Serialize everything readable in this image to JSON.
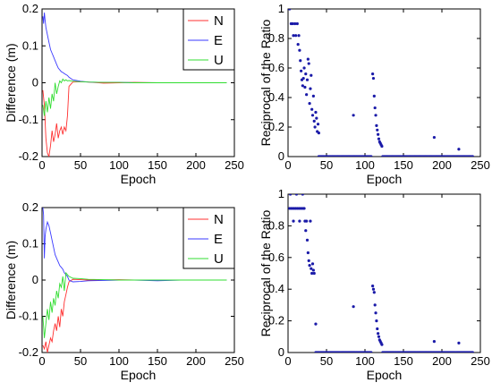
{
  "chart_data": [
    {
      "type": "line",
      "xlabel": "Epoch",
      "ylabel": "Difference (m)",
      "xlim": [
        0,
        250
      ],
      "ylim": [
        -0.2,
        0.2
      ],
      "xticks": [
        0,
        50,
        100,
        150,
        200,
        250
      ],
      "yticks": [
        -0.2,
        -0.1,
        0,
        0.1,
        0.2
      ],
      "ytick_labels": [
        "-0.2",
        "-0.1",
        "0",
        "0.1",
        "0.2"
      ],
      "legend": "top-right",
      "series": [
        {
          "name": "N",
          "color": "#ff3030",
          "x": [
            1,
            3,
            5,
            7,
            9,
            11,
            13,
            15,
            17,
            19,
            21,
            23,
            25,
            27,
            29,
            31,
            33,
            35,
            40,
            50,
            60,
            80,
            100,
            120,
            150,
            180,
            210,
            240
          ],
          "y": [
            -0.02,
            -0.06,
            -0.15,
            -0.19,
            -0.2,
            -0.17,
            -0.13,
            -0.16,
            -0.14,
            -0.11,
            -0.15,
            -0.13,
            -0.12,
            -0.14,
            -0.12,
            -0.13,
            -0.09,
            -0.01,
            0.002,
            0.003,
            0.002,
            -0.001,
            0.0,
            0.001,
            0.0,
            0.0,
            0.0,
            0.0
          ]
        },
        {
          "name": "E",
          "color": "#3a3aff",
          "x": [
            1,
            2,
            3,
            4,
            5,
            7,
            9,
            11,
            13,
            15,
            17,
            19,
            21,
            23,
            25,
            27,
            29,
            31,
            33,
            35,
            40,
            50,
            60,
            80,
            100,
            120,
            150,
            180,
            210,
            240
          ],
          "y": [
            0.18,
            0.16,
            0.19,
            0.17,
            0.15,
            0.13,
            0.11,
            0.09,
            0.08,
            0.07,
            0.06,
            0.05,
            0.04,
            0.035,
            0.03,
            0.028,
            0.025,
            0.022,
            0.02,
            0.015,
            0.008,
            0.004,
            0.002,
            0.001,
            0.001,
            0.0,
            0.0,
            0.0,
            0.0,
            0.0
          ]
        },
        {
          "name": "U",
          "color": "#30dd30",
          "x": [
            1,
            3,
            5,
            7,
            9,
            11,
            13,
            15,
            17,
            19,
            21,
            23,
            25,
            27,
            29,
            31,
            33,
            35,
            40,
            50,
            60,
            80,
            100,
            120,
            150,
            180,
            210,
            240
          ],
          "y": [
            -0.06,
            -0.09,
            -0.05,
            -0.08,
            -0.04,
            -0.07,
            -0.03,
            -0.05,
            0.0,
            -0.03,
            -0.01,
            0.005,
            0.0,
            0.01,
            0.005,
            0.008,
            0.005,
            0.006,
            0.004,
            0.003,
            0.002,
            0.001,
            0.001,
            0.0,
            0.0,
            0.0,
            0.0,
            0.0
          ]
        }
      ]
    },
    {
      "type": "scatter",
      "xlabel": "Epoch",
      "ylabel": "Reciprocal of the Ratio",
      "xlim": [
        0,
        250
      ],
      "ylim": [
        0,
        1
      ],
      "xticks": [
        0,
        50,
        100,
        150,
        200,
        250
      ],
      "yticks": [
        0,
        0.2,
        0.4,
        0.6,
        0.8,
        1
      ],
      "ytick_labels": [
        "0",
        "0.2",
        "0.4",
        "0.6",
        "0.8",
        "1"
      ],
      "marker_color": "#1a1aa8",
      "series": [
        {
          "x": [
            2,
            4,
            6,
            7,
            9,
            10,
            12,
            13,
            14,
            15,
            16,
            17,
            18,
            19,
            20,
            21,
            22,
            23,
            24,
            25,
            26,
            27,
            28,
            29,
            30,
            31,
            32,
            33,
            34,
            35,
            36,
            37,
            38,
            39,
            40,
            85,
            110,
            111,
            112,
            113,
            114,
            115,
            116,
            117,
            118,
            119,
            120,
            121,
            122,
            190,
            222
          ],
          "y": [
            1,
            0.9,
            0.9,
            0.82,
            0.9,
            0.82,
            0.9,
            0.76,
            0.82,
            0.72,
            0.65,
            0.58,
            0.52,
            0.48,
            0.53,
            0.6,
            0.47,
            0.56,
            0.42,
            0.52,
            0.66,
            0.63,
            0.36,
            0.46,
            0.55,
            0.32,
            0.28,
            0.41,
            0.24,
            0.2,
            0.3,
            0.26,
            0.17,
            0.22,
            0.16,
            0.28,
            0.56,
            0.53,
            0.41,
            0.33,
            0.28,
            0.21,
            0.18,
            0.15,
            0.12,
            0.1,
            0.09,
            0.08,
            0.07,
            0.13,
            0.05
          ]
        }
      ],
      "zero_runs": [
        [
          40,
          108
        ],
        [
          123,
          240
        ]
      ]
    },
    {
      "type": "line",
      "xlabel": "Epoch",
      "ylabel": "Difference (m)",
      "xlim": [
        0,
        250
      ],
      "ylim": [
        -0.2,
        0.2
      ],
      "xticks": [
        0,
        50,
        100,
        150,
        200,
        250
      ],
      "yticks": [
        -0.2,
        -0.1,
        0,
        0.1,
        0.2
      ],
      "ytick_labels": [
        "-0.2",
        "-0.1",
        "0",
        "0.1",
        "0.2"
      ],
      "legend": "top-right",
      "series": [
        {
          "name": "N",
          "color": "#ff3030",
          "x": [
            1,
            3,
            5,
            7,
            9,
            11,
            13,
            15,
            17,
            19,
            21,
            23,
            25,
            27,
            29,
            31,
            33,
            35,
            40,
            50,
            60,
            80,
            100,
            120,
            150,
            180,
            210,
            240
          ],
          "y": [
            -0.18,
            -0.19,
            -0.17,
            -0.2,
            -0.18,
            -0.16,
            -0.17,
            -0.14,
            -0.12,
            -0.14,
            -0.1,
            -0.13,
            -0.08,
            -0.1,
            -0.06,
            -0.04,
            -0.02,
            -0.005,
            0.002,
            0.001,
            0.0,
            0.0,
            0.001,
            0.0,
            0.0,
            0.0,
            0.0,
            0.0
          ]
        },
        {
          "name": "E",
          "color": "#3a3aff",
          "x": [
            1,
            2,
            3,
            4,
            5,
            7,
            9,
            11,
            13,
            15,
            17,
            19,
            21,
            23,
            25,
            27,
            29,
            31,
            33,
            35,
            40,
            50,
            60,
            80,
            100,
            120,
            150,
            180,
            210,
            240
          ],
          "y": [
            0.2,
            0.18,
            0.06,
            0.12,
            0.14,
            0.16,
            0.15,
            0.13,
            0.11,
            0.09,
            0.07,
            0.06,
            0.05,
            0.04,
            0.035,
            0.03,
            0.02,
            0.015,
            0.01,
            0.0,
            -0.005,
            -0.004,
            -0.002,
            -0.001,
            0.0,
            0.0,
            -0.002,
            0.0,
            0.0,
            0.0
          ]
        },
        {
          "name": "U",
          "color": "#30dd30",
          "x": [
            1,
            3,
            5,
            7,
            9,
            11,
            13,
            15,
            17,
            19,
            21,
            23,
            25,
            27,
            29,
            31,
            33,
            35,
            40,
            50,
            60,
            80,
            100,
            120,
            150,
            180,
            210,
            240
          ],
          "y": [
            -0.1,
            -0.16,
            -0.12,
            -0.08,
            -0.11,
            -0.06,
            -0.09,
            -0.05,
            -0.07,
            -0.03,
            -0.05,
            -0.01,
            -0.02,
            0.01,
            -0.03,
            0.02,
            0.015,
            0.01,
            0.005,
            0.004,
            0.002,
            0.001,
            0.0,
            0.0,
            0.0,
            0.0,
            0.0,
            0.0
          ]
        }
      ]
    },
    {
      "type": "scatter",
      "xlabel": "Epoch",
      "ylabel": "Reciprocal of the Ratio",
      "xlim": [
        0,
        250
      ],
      "ylim": [
        0,
        1
      ],
      "xticks": [
        0,
        50,
        100,
        150,
        200,
        250
      ],
      "yticks": [
        0,
        0.2,
        0.4,
        0.6,
        0.8,
        1
      ],
      "ytick_labels": [
        "0",
        "0.2",
        "0.4",
        "0.6",
        "0.8",
        "1"
      ],
      "marker_color": "#1a1aa8",
      "series": [
        {
          "x": [
            2,
            4,
            6,
            8,
            10,
            12,
            14,
            16,
            18,
            20,
            3,
            7,
            11,
            15,
            19,
            21,
            22,
            23,
            24,
            25,
            26,
            27,
            28,
            29,
            30,
            31,
            32,
            33,
            34,
            36,
            85,
            110,
            111,
            112,
            113,
            114,
            115,
            116,
            117,
            118,
            119,
            120,
            121,
            122,
            190,
            222
          ],
          "y": [
            0.91,
            0.91,
            0.91,
            0.91,
            0.91,
            0.91,
            0.91,
            0.91,
            0.91,
            0.91,
            1,
            0.83,
            1,
            0.83,
            1,
            0.91,
            0.83,
            0.77,
            0.83,
            0.71,
            0.63,
            0.58,
            0.55,
            0.83,
            0.53,
            0.5,
            0.56,
            0.52,
            0.5,
            0.18,
            0.29,
            0.42,
            0.4,
            0.38,
            0.3,
            0.25,
            0.2,
            0.15,
            0.12,
            0.1,
            0.08,
            0.07,
            0.06,
            0.05,
            0.07,
            0.06
          ]
        }
      ],
      "zero_runs": [
        [
          36,
          108
        ],
        [
          123,
          240
        ]
      ]
    }
  ]
}
